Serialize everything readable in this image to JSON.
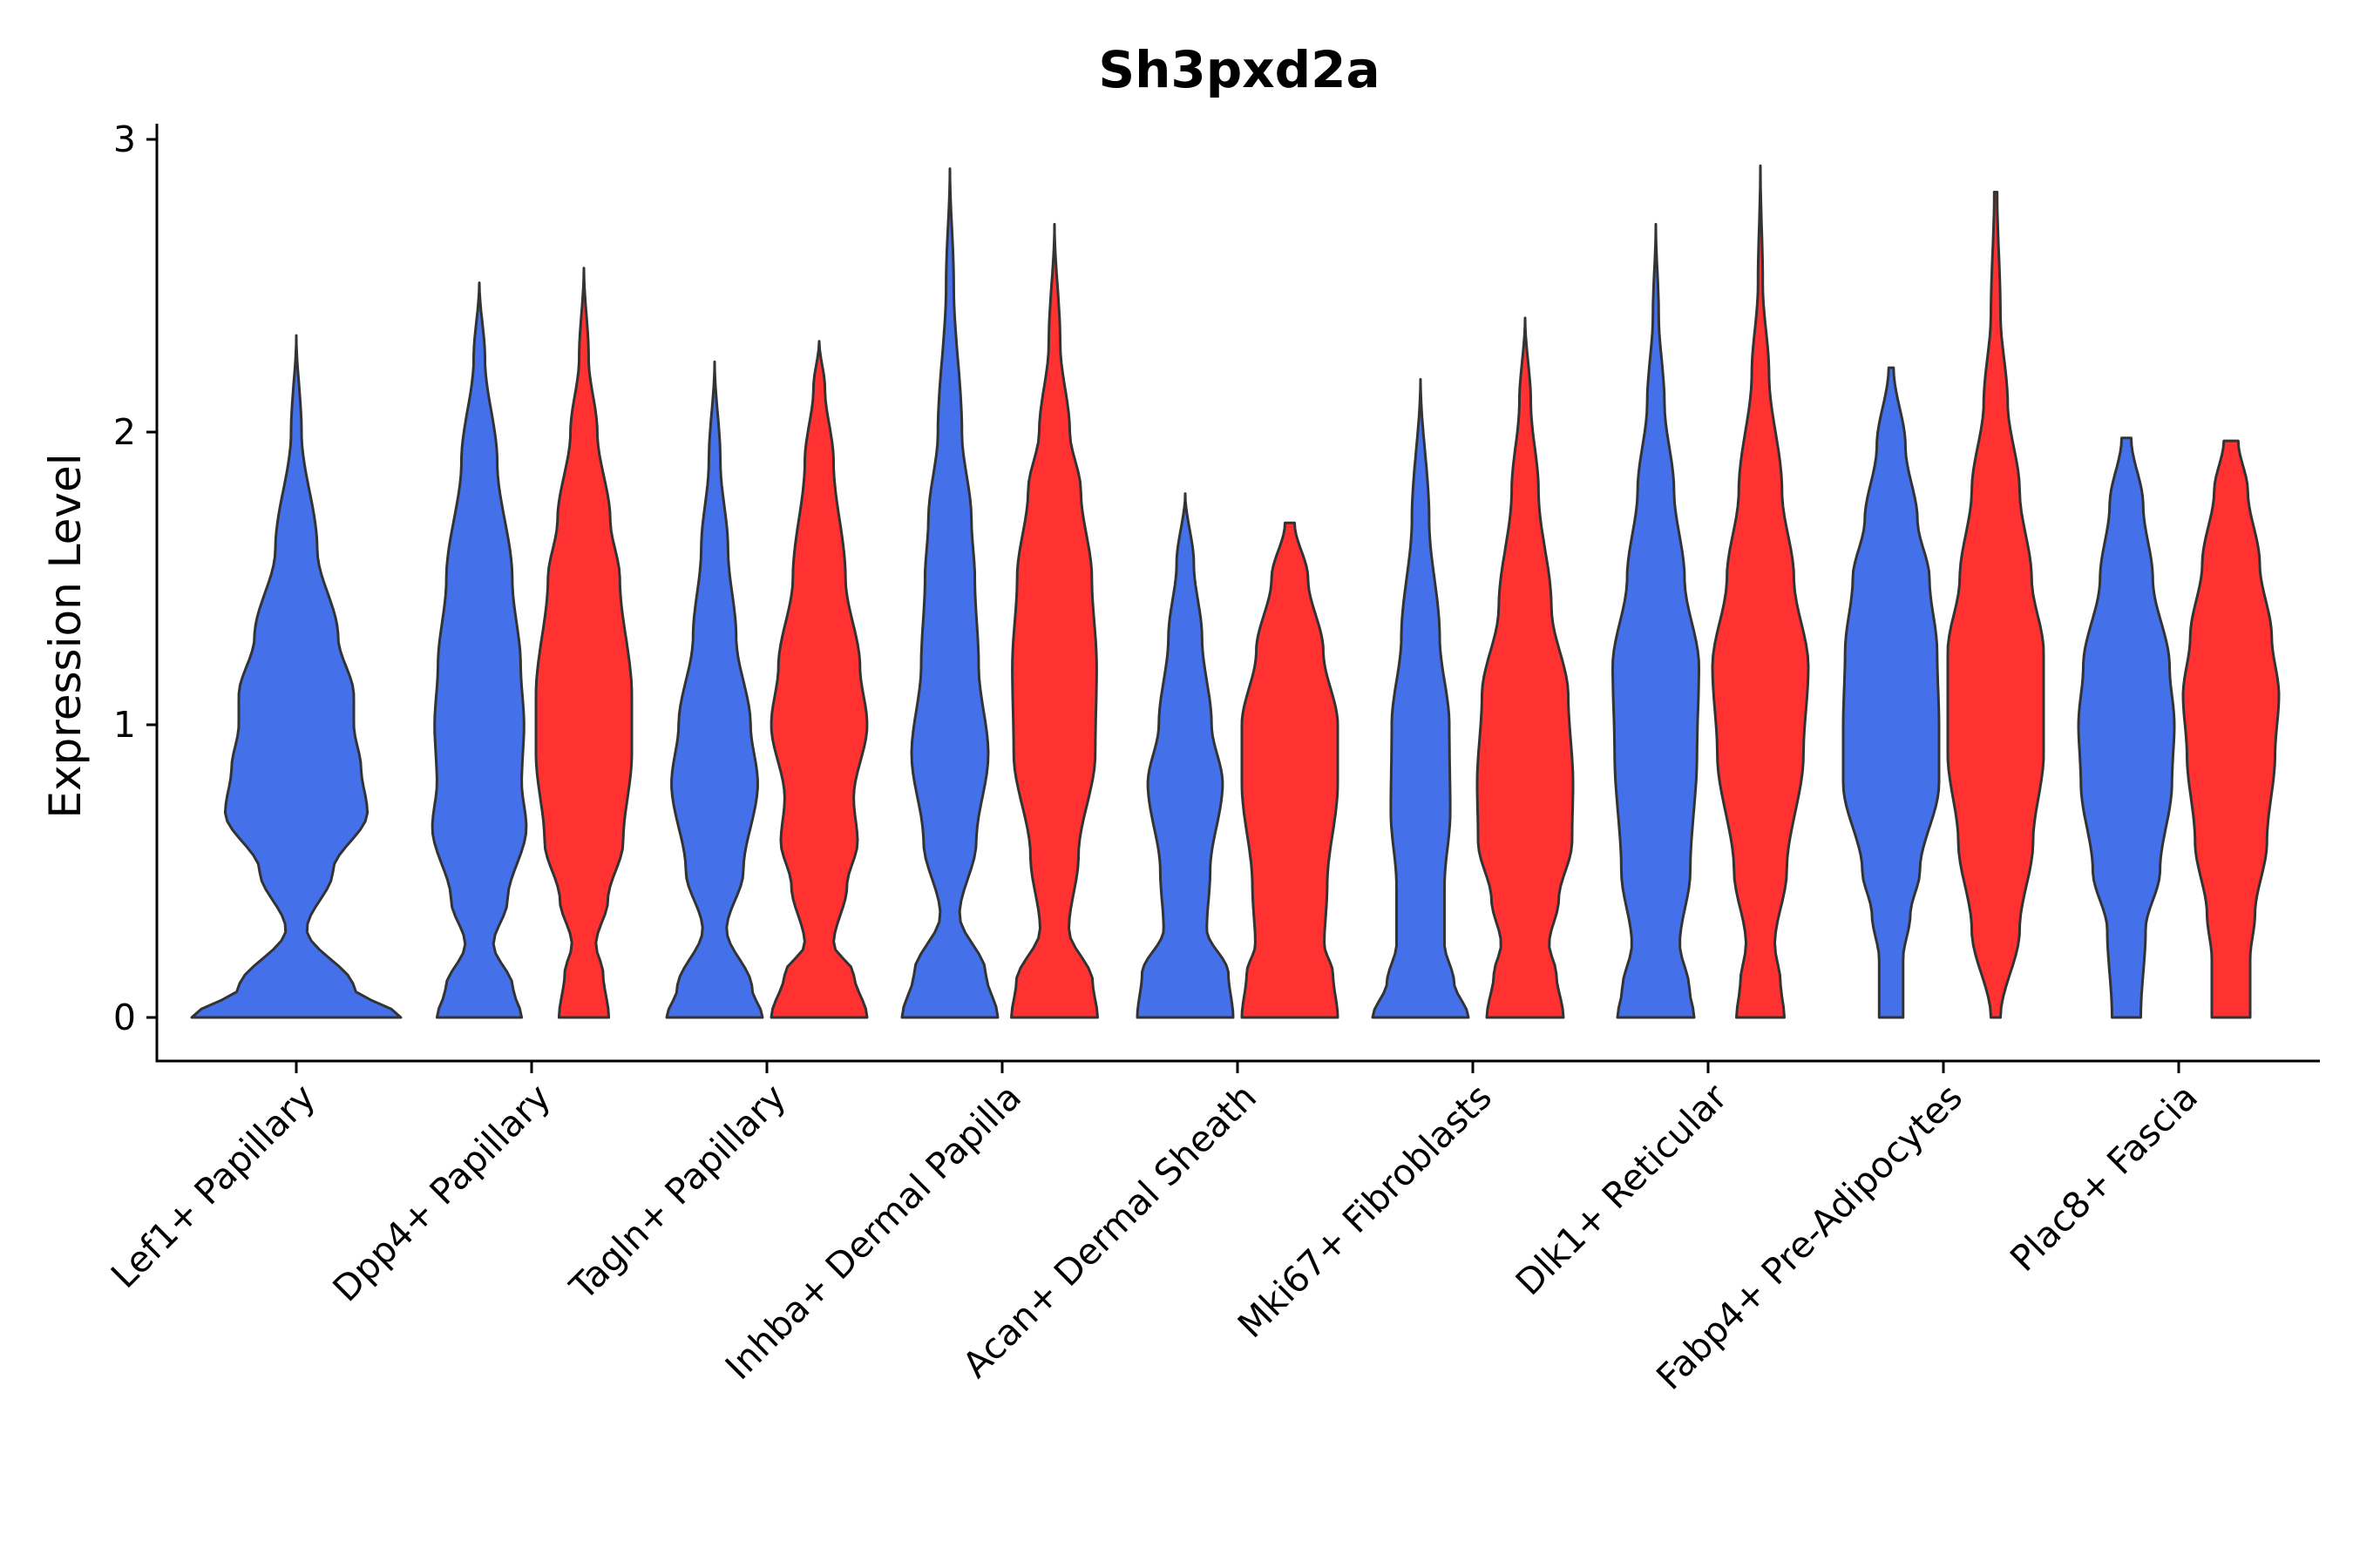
{
  "chart_data": {
    "type": "violin",
    "title": "Sh3pxd2a",
    "xlabel": "",
    "ylabel": "Expression Level",
    "ylim": [
      -0.15,
      3.05
    ],
    "yticks": [
      0,
      1,
      2,
      3
    ],
    "ytick_labels": [
      "0",
      "1",
      "2",
      "3"
    ],
    "categories": [
      "Lef1+ Papillary",
      "Dpp4+ Papillary",
      "Tagln+ Papillary",
      "Inhba+ Dermal Papilla",
      "Acan+ Dermal Sheath",
      "Mki67+ Fibroblasts",
      "Dlk1+ Reticular",
      "Fabp4+ Pre-Adipocytes",
      "Plac8+ Fascia"
    ],
    "colors": {
      "group_a": "#4470ea",
      "group_b": "#ff3131"
    },
    "violins": [
      {
        "category": 0,
        "group": "a",
        "max": 2.33,
        "half_width": 1.0,
        "profile": [
          [
            0,
            1.0
          ],
          [
            0.1,
            0.55
          ],
          [
            0.3,
            0.1
          ],
          [
            0.5,
            0.35
          ],
          [
            0.7,
            0.68
          ],
          [
            0.85,
            0.62
          ],
          [
            1.0,
            0.55
          ],
          [
            1.1,
            0.55
          ],
          [
            1.3,
            0.4
          ],
          [
            1.6,
            0.2
          ],
          [
            2.0,
            0.05
          ],
          [
            2.33,
            0.0
          ]
        ]
      },
      {
        "category": 1,
        "group": "a",
        "max": 2.51,
        "half_width": 0.45,
        "profile": [
          [
            0,
            0.9
          ],
          [
            0.1,
            0.72
          ],
          [
            0.25,
            0.3
          ],
          [
            0.4,
            0.6
          ],
          [
            0.65,
            1.0
          ],
          [
            0.8,
            0.9
          ],
          [
            1.0,
            0.95
          ],
          [
            1.2,
            0.88
          ],
          [
            1.5,
            0.7
          ],
          [
            1.9,
            0.38
          ],
          [
            2.25,
            0.12
          ],
          [
            2.51,
            0.0
          ]
        ]
      },
      {
        "category": 1,
        "group": "b",
        "max": 2.56,
        "half_width": 0.48,
        "profile": [
          [
            0,
            0.52
          ],
          [
            0.15,
            0.4
          ],
          [
            0.25,
            0.25
          ],
          [
            0.4,
            0.5
          ],
          [
            0.6,
            0.82
          ],
          [
            0.9,
            1.0
          ],
          [
            1.1,
            1.0
          ],
          [
            1.5,
            0.75
          ],
          [
            1.7,
            0.55
          ],
          [
            2.0,
            0.28
          ],
          [
            2.25,
            0.1
          ],
          [
            2.56,
            0.0
          ]
        ]
      },
      {
        "category": 2,
        "group": "a",
        "max": 2.24,
        "half_width": 0.5,
        "profile": [
          [
            0,
            1.0
          ],
          [
            0.1,
            0.78
          ],
          [
            0.3,
            0.25
          ],
          [
            0.5,
            0.6
          ],
          [
            0.8,
            0.9
          ],
          [
            1.0,
            0.75
          ],
          [
            1.3,
            0.45
          ],
          [
            1.6,
            0.28
          ],
          [
            1.9,
            0.12
          ],
          [
            2.24,
            0.0
          ]
        ]
      },
      {
        "category": 2,
        "group": "b",
        "max": 2.31,
        "half_width": 0.5,
        "profile": [
          [
            0,
            1.0
          ],
          [
            0.15,
            0.72
          ],
          [
            0.25,
            0.3
          ],
          [
            0.45,
            0.58
          ],
          [
            0.6,
            0.8
          ],
          [
            0.75,
            0.72
          ],
          [
            1.0,
            1.0
          ],
          [
            1.2,
            0.85
          ],
          [
            1.5,
            0.55
          ],
          [
            1.9,
            0.3
          ],
          [
            2.15,
            0.12
          ],
          [
            2.31,
            0.0
          ]
        ]
      },
      {
        "category": 3,
        "group": "a",
        "max": 2.9,
        "half_width": 0.5,
        "profile": [
          [
            0,
            1.0
          ],
          [
            0.15,
            0.75
          ],
          [
            0.35,
            0.2
          ],
          [
            0.6,
            0.55
          ],
          [
            0.9,
            0.8
          ],
          [
            1.2,
            0.6
          ],
          [
            1.5,
            0.52
          ],
          [
            1.7,
            0.45
          ],
          [
            2.0,
            0.25
          ],
          [
            2.5,
            0.08
          ],
          [
            2.9,
            0.0
          ]
        ]
      },
      {
        "category": 3,
        "group": "b",
        "max": 2.71,
        "half_width": 0.5,
        "profile": [
          [
            0,
            0.9
          ],
          [
            0.12,
            0.8
          ],
          [
            0.3,
            0.3
          ],
          [
            0.55,
            0.5
          ],
          [
            0.9,
            0.85
          ],
          [
            1.2,
            0.88
          ],
          [
            1.5,
            0.78
          ],
          [
            1.8,
            0.55
          ],
          [
            2.0,
            0.32
          ],
          [
            2.3,
            0.12
          ],
          [
            2.71,
            0.0
          ]
        ]
      },
      {
        "category": 4,
        "group": "a",
        "max": 1.79,
        "half_width": 0.5,
        "profile": [
          [
            0,
            1.0
          ],
          [
            0.15,
            0.9
          ],
          [
            0.3,
            0.45
          ],
          [
            0.5,
            0.52
          ],
          [
            0.8,
            0.78
          ],
          [
            1.0,
            0.55
          ],
          [
            1.3,
            0.35
          ],
          [
            1.55,
            0.18
          ],
          [
            1.79,
            0.0
          ]
        ]
      },
      {
        "category": 4,
        "group": "b",
        "max": 1.69,
        "half_width": 0.5,
        "profile": [
          [
            0,
            1.0
          ],
          [
            0.15,
            0.9
          ],
          [
            0.25,
            0.72
          ],
          [
            0.45,
            0.78
          ],
          [
            0.8,
            1.0
          ],
          [
            1.0,
            1.0
          ],
          [
            1.25,
            0.7
          ],
          [
            1.5,
            0.38
          ],
          [
            1.69,
            0.1
          ]
        ]
      },
      {
        "category": 5,
        "group": "a",
        "max": 2.18,
        "half_width": 0.5,
        "profile": [
          [
            0,
            1.0
          ],
          [
            0.12,
            0.7
          ],
          [
            0.25,
            0.5
          ],
          [
            0.45,
            0.5
          ],
          [
            0.7,
            0.62
          ],
          [
            1.0,
            0.6
          ],
          [
            1.3,
            0.4
          ],
          [
            1.7,
            0.18
          ],
          [
            2.18,
            0.0
          ]
        ]
      },
      {
        "category": 5,
        "group": "b",
        "max": 2.39,
        "half_width": 0.5,
        "profile": [
          [
            0,
            0.8
          ],
          [
            0.15,
            0.65
          ],
          [
            0.25,
            0.5
          ],
          [
            0.4,
            0.7
          ],
          [
            0.6,
            0.98
          ],
          [
            0.8,
            1.0
          ],
          [
            1.1,
            0.9
          ],
          [
            1.4,
            0.55
          ],
          [
            1.8,
            0.28
          ],
          [
            2.1,
            0.12
          ],
          [
            2.39,
            0.0
          ]
        ]
      },
      {
        "category": 6,
        "group": "a",
        "max": 2.71,
        "half_width": 0.5,
        "profile": [
          [
            0,
            0.8
          ],
          [
            0.1,
            0.7
          ],
          [
            0.25,
            0.5
          ],
          [
            0.5,
            0.72
          ],
          [
            0.9,
            0.86
          ],
          [
            1.2,
            0.9
          ],
          [
            1.5,
            0.6
          ],
          [
            1.8,
            0.38
          ],
          [
            2.1,
            0.18
          ],
          [
            2.4,
            0.06
          ],
          [
            2.71,
            0.0
          ]
        ]
      },
      {
        "category": 6,
        "group": "b",
        "max": 2.91,
        "half_width": 0.5,
        "profile": [
          [
            0,
            0.5
          ],
          [
            0.12,
            0.42
          ],
          [
            0.25,
            0.3
          ],
          [
            0.5,
            0.55
          ],
          [
            0.9,
            0.9
          ],
          [
            1.2,
            1.0
          ],
          [
            1.5,
            0.7
          ],
          [
            1.8,
            0.45
          ],
          [
            2.2,
            0.18
          ],
          [
            2.5,
            0.05
          ],
          [
            2.91,
            0.0
          ]
        ]
      },
      {
        "category": 7,
        "group": "a",
        "max": 2.22,
        "half_width": 0.5,
        "profile": [
          [
            0,
            0.25
          ],
          [
            0.2,
            0.25
          ],
          [
            0.35,
            0.4
          ],
          [
            0.5,
            0.6
          ],
          [
            0.8,
            1.0
          ],
          [
            1.0,
            1.0
          ],
          [
            1.25,
            0.96
          ],
          [
            1.5,
            0.8
          ],
          [
            1.7,
            0.55
          ],
          [
            1.95,
            0.3
          ],
          [
            2.22,
            0.05
          ]
        ]
      },
      {
        "category": 7,
        "group": "b",
        "max": 2.82,
        "half_width": 0.5,
        "profile": [
          [
            0,
            0.1
          ],
          [
            0.3,
            0.5
          ],
          [
            0.6,
            0.78
          ],
          [
            0.9,
            1.0
          ],
          [
            1.25,
            1.0
          ],
          [
            1.5,
            0.75
          ],
          [
            1.8,
            0.5
          ],
          [
            2.1,
            0.25
          ],
          [
            2.4,
            0.1
          ],
          [
            2.82,
            0.03
          ]
        ]
      },
      {
        "category": 8,
        "group": "a",
        "max": 1.98,
        "half_width": 0.5,
        "profile": [
          [
            0,
            0.3
          ],
          [
            0.3,
            0.4
          ],
          [
            0.5,
            0.7
          ],
          [
            0.8,
            0.95
          ],
          [
            1.0,
            1.0
          ],
          [
            1.2,
            0.9
          ],
          [
            1.5,
            0.55
          ],
          [
            1.75,
            0.35
          ],
          [
            1.98,
            0.1
          ]
        ]
      },
      {
        "category": 8,
        "group": "b",
        "max": 1.97,
        "half_width": 0.5,
        "profile": [
          [
            0,
            0.4
          ],
          [
            0.2,
            0.4
          ],
          [
            0.35,
            0.5
          ],
          [
            0.6,
            0.75
          ],
          [
            0.9,
            0.92
          ],
          [
            1.1,
            1.0
          ],
          [
            1.3,
            0.85
          ],
          [
            1.55,
            0.6
          ],
          [
            1.8,
            0.35
          ],
          [
            1.97,
            0.15
          ]
        ]
      }
    ]
  }
}
